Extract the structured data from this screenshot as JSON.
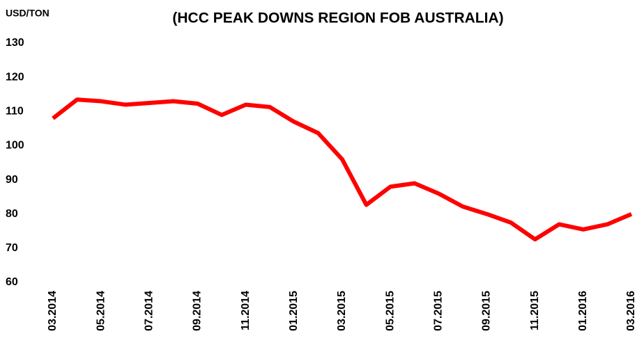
{
  "chart_data": {
    "type": "line",
    "title": "(HCC PEAK DOWNS REGION FOB AUSTRALIA)",
    "y_label": "USD/TON",
    "categories": [
      "03.2014",
      null,
      "05.2014",
      null,
      "07.2014",
      null,
      "09.2014",
      null,
      "11.2014",
      null,
      "01.2015",
      null,
      "03.2015",
      null,
      "05.2015",
      null,
      "07.2015",
      null,
      "09.2015",
      null,
      "11.2015",
      null,
      "01.2016",
      null,
      "03.2016"
    ],
    "series": [
      {
        "name": "HCC",
        "color": "#ff0000",
        "values": [
          108,
          113.5,
          113,
          112,
          112.5,
          113,
          112.3,
          109,
          112,
          111.3,
          107,
          103.7,
          96,
          82.7,
          88,
          89,
          86,
          82.2,
          80,
          77.5,
          72.6,
          77,
          75.5,
          77,
          80
        ]
      }
    ],
    "ylim": [
      60,
      130
    ],
    "yticks": [
      60,
      70,
      80,
      90,
      100,
      110,
      120,
      130
    ],
    "grid": false
  }
}
